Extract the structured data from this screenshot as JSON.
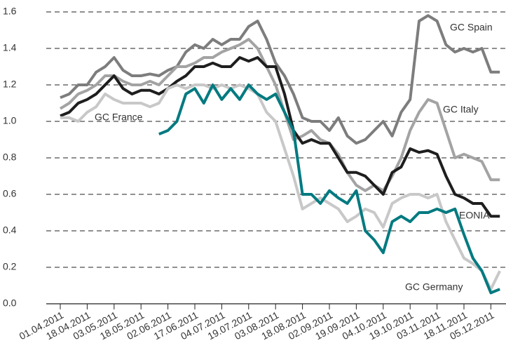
{
  "chart_data": {
    "type": "line",
    "categories": [
      "01.04.2011",
      null,
      null,
      "18.04.2011",
      null,
      null,
      "03.05.2011",
      null,
      null,
      "18.05.2011",
      null,
      null,
      "02.06.2011",
      null,
      null,
      "17.06.2011",
      null,
      null,
      "04.07.2011",
      null,
      null,
      "19.07.2011",
      null,
      null,
      "03.08.2011",
      null,
      null,
      "18.08.2011",
      null,
      null,
      "02.09.2011",
      null,
      null,
      "19.09.2011",
      null,
      null,
      "04.10.2011",
      null,
      null,
      "19.10.2011",
      null,
      null,
      "03.11.2011",
      null,
      null,
      "18.11.2011",
      null,
      null,
      "05.12.2011",
      null
    ],
    "series": [
      {
        "name": "GC Spain",
        "color": "#7d7d7d",
        "values": [
          1.13,
          1.15,
          1.2,
          1.2,
          1.27,
          1.3,
          1.35,
          1.28,
          1.25,
          1.25,
          1.26,
          1.25,
          1.28,
          1.3,
          1.38,
          1.42,
          1.4,
          1.45,
          1.42,
          1.45,
          1.45,
          1.52,
          1.55,
          1.45,
          1.32,
          1.25,
          1.15,
          1.02,
          1.0,
          1.0,
          0.95,
          1.02,
          0.92,
          0.88,
          0.9,
          0.95,
          1.0,
          0.92,
          1.05,
          1.12,
          1.55,
          1.58,
          1.55,
          1.42,
          1.38,
          1.4,
          1.38,
          1.4,
          1.27,
          1.27
        ]
      },
      {
        "name": "GC Italy",
        "color": "#a3a3a3",
        "values": [
          1.07,
          1.1,
          1.15,
          1.17,
          1.2,
          1.25,
          1.25,
          1.22,
          1.2,
          1.2,
          1.22,
          1.2,
          1.25,
          1.3,
          1.3,
          1.32,
          1.35,
          1.35,
          1.38,
          1.4,
          1.42,
          1.45,
          1.4,
          1.3,
          1.2,
          1.05,
          0.9,
          0.92,
          0.95,
          0.9,
          0.88,
          0.82,
          0.72,
          0.65,
          0.62,
          0.65,
          0.62,
          0.7,
          0.8,
          0.95,
          1.05,
          1.12,
          1.1,
          0.95,
          0.8,
          0.82,
          0.8,
          0.78,
          0.68,
          0.68
        ]
      },
      {
        "name": "EONIA",
        "color": "#1e1e1e",
        "values": [
          1.03,
          1.05,
          1.1,
          1.12,
          1.15,
          1.2,
          1.25,
          1.18,
          1.15,
          1.17,
          1.17,
          1.15,
          1.18,
          1.22,
          1.25,
          1.3,
          1.3,
          1.32,
          1.3,
          1.3,
          1.35,
          1.33,
          1.35,
          1.3,
          1.3,
          1.15,
          0.95,
          0.88,
          0.9,
          0.88,
          0.88,
          0.8,
          0.72,
          0.72,
          0.7,
          0.65,
          0.6,
          0.72,
          0.75,
          0.85,
          0.83,
          0.84,
          0.82,
          0.7,
          0.6,
          0.58,
          0.55,
          0.55,
          0.48,
          0.48
        ]
      },
      {
        "name": "GC France",
        "color": "#c8c8c8",
        "values": [
          1.02,
          1.02,
          1.0,
          1.05,
          1.08,
          1.15,
          1.12,
          1.1,
          1.1,
          1.1,
          1.08,
          1.1,
          1.18,
          1.2,
          1.18,
          1.2,
          1.2,
          1.18,
          1.2,
          1.18,
          1.2,
          1.18,
          1.15,
          1.05,
          1.0,
          0.85,
          0.7,
          0.52,
          0.55,
          0.58,
          0.55,
          0.52,
          0.45,
          0.48,
          0.52,
          0.5,
          0.42,
          0.55,
          0.58,
          0.6,
          0.6,
          0.58,
          0.6,
          0.45,
          0.35,
          0.25,
          0.22,
          0.18,
          0.08,
          0.18
        ]
      },
      {
        "name": "GC Germany",
        "color": "#007a80",
        "values": [
          null,
          null,
          null,
          null,
          null,
          null,
          null,
          null,
          null,
          null,
          null,
          0.93,
          0.95,
          1.0,
          1.15,
          1.18,
          1.1,
          1.2,
          1.12,
          1.18,
          1.12,
          1.2,
          1.15,
          1.12,
          1.15,
          1.05,
          0.95,
          0.6,
          0.6,
          0.55,
          0.62,
          0.58,
          0.55,
          0.62,
          0.4,
          0.35,
          0.28,
          0.45,
          0.48,
          0.45,
          0.5,
          0.5,
          0.52,
          0.5,
          0.52,
          0.38,
          0.25,
          0.18,
          0.06,
          0.08
        ]
      }
    ],
    "ylim": [
      0,
      1.6
    ],
    "yticks": [
      {
        "value": 0,
        "label": "0.0"
      },
      0.2,
      0.4,
      0.6,
      0.8,
      {
        "value": 1,
        "label": "1.0"
      },
      1.2,
      1.4,
      1.6
    ],
    "grid": true
  }
}
